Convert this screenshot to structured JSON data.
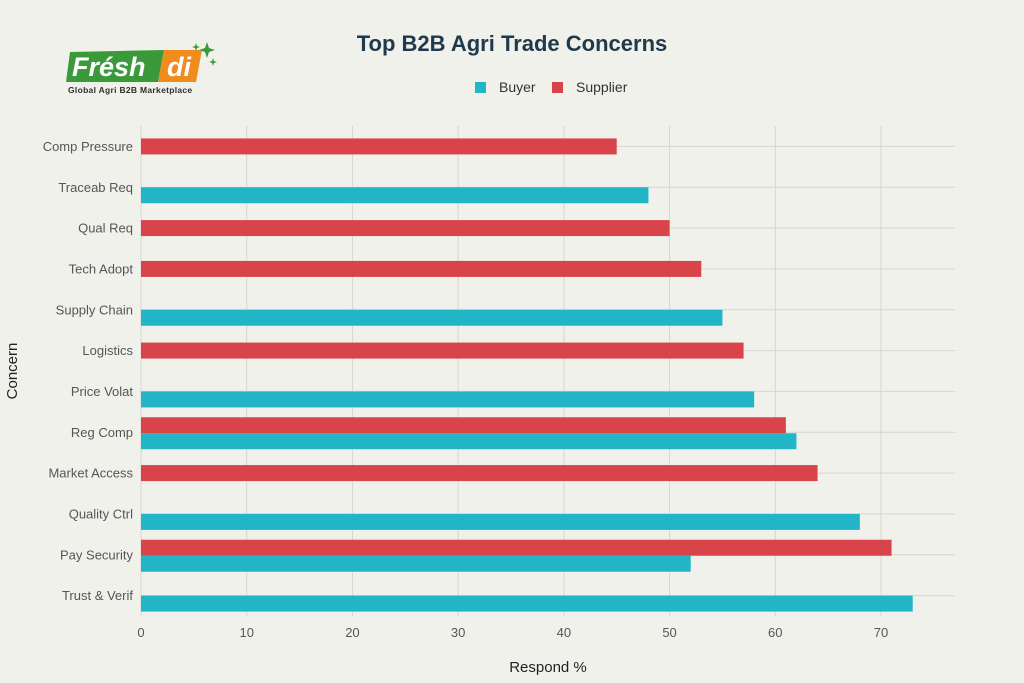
{
  "logo": {
    "brand_main": "Frésh",
    "brand_accent": "di",
    "tagline": "Global Agri B2B Marketplace",
    "green": "#3a9a3a",
    "orange": "#f08c1e"
  },
  "chart_data": {
    "type": "bar",
    "orientation": "horizontal",
    "title": "Top B2B Agri Trade Concerns",
    "xlabel": "Respond %",
    "ylabel": "Concern",
    "xlim": [
      0,
      77
    ],
    "xticks": [
      0,
      10,
      20,
      30,
      40,
      50,
      60,
      70
    ],
    "grid": true,
    "legend_position": "top-center",
    "categories": [
      "Comp Pressure",
      "Traceab Req",
      "Qual Req",
      "Tech Adopt",
      "Supply Chain",
      "Logistics",
      "Price Volat",
      "Reg Comp",
      "Market Access",
      "Quality Ctrl",
      "Pay Security",
      "Trust & Verif"
    ],
    "series": [
      {
        "name": "Buyer",
        "color": "#22b5c8",
        "values": [
          null,
          48,
          null,
          null,
          55,
          null,
          58,
          62,
          null,
          68,
          52,
          73
        ]
      },
      {
        "name": "Supplier",
        "color": "#d9434a",
        "values": [
          45,
          null,
          50,
          53,
          null,
          57,
          null,
          61,
          64,
          null,
          71,
          null
        ]
      }
    ]
  }
}
